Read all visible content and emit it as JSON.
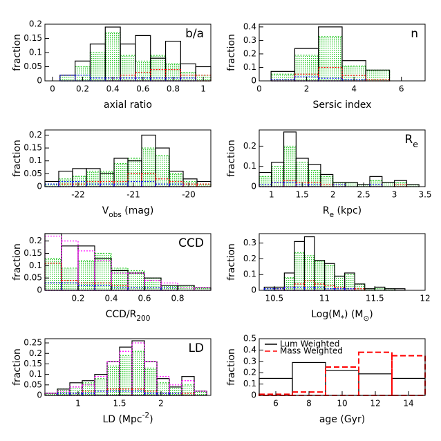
{
  "chart_data": [
    {
      "type": "histogram",
      "ylabel": "fraction",
      "xlabel": [
        {
          "text": "axial ratio"
        }
      ],
      "annotation": [
        {
          "text": "b/a"
        }
      ],
      "xlim": [
        -0.05,
        1.05
      ],
      "xticks": [
        0,
        0.2,
        0.4,
        0.6,
        0.8,
        1
      ],
      "ylim": [
        0,
        0.2
      ],
      "yticks": [
        0,
        0.05,
        0.1,
        0.15,
        0.2
      ],
      "bins": [
        0.05,
        0.15,
        0.25,
        0.35,
        0.45,
        0.55,
        0.65,
        0.75,
        0.85,
        0.95,
        1.05
      ],
      "series": [
        {
          "color": "#33cc33",
          "style": "fill",
          "values": [
            0.02,
            0.05,
            0.1,
            0.17,
            0.09,
            0.07,
            0.09,
            0.06,
            0.03,
            0.02
          ]
        },
        {
          "color": "#000000",
          "style": "solid",
          "values": [
            0.02,
            0.07,
            0.13,
            0.19,
            0.13,
            0.16,
            0.08,
            0.14,
            0.06,
            0.05
          ]
        },
        {
          "color": "#ff0000",
          "style": "dotted",
          "values": [
            0,
            0,
            0,
            0.01,
            0.02,
            0.03,
            0.04,
            0.04,
            0.02,
            0.02
          ]
        },
        {
          "color": "#0000ff",
          "style": "dotted",
          "values": [
            0.02,
            0.02,
            0.01,
            0.01,
            0.01,
            0.01,
            0.01,
            0.01,
            0.01,
            0
          ]
        }
      ]
    },
    {
      "type": "histogram",
      "ylabel": "fraction",
      "xlabel": [
        {
          "text": "Sersic index"
        }
      ],
      "annotation": [
        {
          "text": "n"
        }
      ],
      "xlim": [
        0,
        7
      ],
      "xticks": [
        0,
        2,
        4,
        6
      ],
      "ylim": [
        0,
        0.42
      ],
      "yticks": [
        0,
        0.1,
        0.2,
        0.3,
        0.4
      ],
      "bins": [
        0.5,
        1.5,
        2.5,
        3.5,
        4.5,
        5.5
      ],
      "series": [
        {
          "color": "#33cc33",
          "style": "fill",
          "values": [
            0.05,
            0.19,
            0.33,
            0.11,
            0.08
          ]
        },
        {
          "color": "#000000",
          "style": "solid",
          "values": [
            0.07,
            0.24,
            0.4,
            0.15,
            0.08
          ]
        },
        {
          "color": "#ff0000",
          "style": "dotted",
          "values": [
            0.01,
            0.05,
            0.1,
            0.04,
            0.01
          ]
        },
        {
          "color": "#0000ff",
          "style": "dotted",
          "values": [
            0.01,
            0.03,
            0.02,
            0.01,
            0
          ]
        }
      ]
    },
    {
      "type": "histogram",
      "ylabel": "fraction",
      "xlabel": [
        {
          "text": "V"
        },
        {
          "text": "obs",
          "sub": true
        },
        {
          "text": " (mag)"
        }
      ],
      "annotation": [],
      "xlim": [
        -22.6,
        -19.6
      ],
      "xticks": [
        -22,
        -21,
        -20
      ],
      "ylim": [
        0,
        0.22
      ],
      "yticks": [
        0,
        0.05,
        0.1,
        0.15,
        0.2
      ],
      "bins": [
        -22.6,
        -22.35,
        -22.1,
        -21.85,
        -21.6,
        -21.35,
        -21.1,
        -20.85,
        -20.6,
        -20.35,
        -20.1,
        -19.85,
        -19.6
      ],
      "series": [
        {
          "color": "#33cc33",
          "style": "fill",
          "values": [
            0.01,
            0.03,
            0.04,
            0.06,
            0.06,
            0.09,
            0.11,
            0.15,
            0.12,
            0.05,
            0.02,
            0.01
          ]
        },
        {
          "color": "#000000",
          "style": "solid",
          "values": [
            0.02,
            0.06,
            0.07,
            0.07,
            0.05,
            0.11,
            0.1,
            0.2,
            0.15,
            0.06,
            0.03,
            0.02
          ]
        },
        {
          "color": "#ff0000",
          "style": "dotted",
          "values": [
            0,
            0.01,
            0.01,
            0.02,
            0.02,
            0.02,
            0.05,
            0.05,
            0.03,
            0.02,
            0.01,
            0.01
          ]
        },
        {
          "color": "#0000ff",
          "style": "dotted",
          "values": [
            0.01,
            0.02,
            0.02,
            0.01,
            0.01,
            0.01,
            0.02,
            0.02,
            0.01,
            0.01,
            0,
            0
          ]
        }
      ]
    },
    {
      "type": "histogram",
      "ylabel": "fraction",
      "xlabel": [
        {
          "text": "R"
        },
        {
          "text": "e",
          "sub": true
        },
        {
          "text": " (kpc)"
        }
      ],
      "annotation": [
        {
          "text": "R"
        },
        {
          "text": "e",
          "sub": true
        }
      ],
      "xlim": [
        0.8,
        3.5
      ],
      "xticks": [
        1,
        1.5,
        2,
        2.5,
        3,
        3.5
      ],
      "ylim": [
        0,
        0.28
      ],
      "yticks": [
        0,
        0.1,
        0.2
      ],
      "bins": [
        0.8,
        1.0,
        1.2,
        1.4,
        1.6,
        1.8,
        2.0,
        2.2,
        2.4,
        2.6,
        2.8,
        3.0,
        3.2,
        3.4
      ],
      "series": [
        {
          "color": "#33cc33",
          "style": "fill",
          "values": [
            0.05,
            0.1,
            0.2,
            0.12,
            0.08,
            0.05,
            0.02,
            0.02,
            0.01,
            0.03,
            0.02,
            0.02,
            0.01
          ]
        },
        {
          "color": "#000000",
          "style": "solid",
          "values": [
            0.07,
            0.12,
            0.27,
            0.14,
            0.11,
            0.06,
            0.02,
            0.02,
            0.01,
            0.05,
            0.02,
            0.03,
            0.01
          ]
        },
        {
          "color": "#ff0000",
          "style": "dotted",
          "values": [
            0.01,
            0.02,
            0.03,
            0.02,
            0.02,
            0.01,
            0.01,
            0,
            0,
            0.01,
            0,
            0.01,
            0
          ]
        },
        {
          "color": "#0000ff",
          "style": "dotted",
          "values": [
            0.01,
            0.02,
            0.02,
            0.01,
            0.01,
            0,
            0.01,
            0,
            0,
            0.01,
            0,
            0,
            0
          ]
        }
      ]
    },
    {
      "type": "histogram",
      "ylabel": "fraction",
      "xlabel": [
        {
          "text": "CCD/R"
        },
        {
          "text": "200",
          "sub": true
        }
      ],
      "annotation": [
        {
          "text": "CCD"
        }
      ],
      "xlim": [
        0,
        1
      ],
      "xticks": [
        0.2,
        0.4,
        0.6,
        0.8
      ],
      "ylim": [
        0,
        0.23
      ],
      "yticks": [
        0,
        0.05,
        0.1,
        0.15,
        0.2
      ],
      "bins": [
        0,
        0.1,
        0.2,
        0.3,
        0.4,
        0.5,
        0.6,
        0.7,
        0.8,
        0.9,
        1.0
      ],
      "series": [
        {
          "color": "#33cc33",
          "style": "fill",
          "values": [
            0.13,
            0.09,
            0.12,
            0.15,
            0.09,
            0.08,
            0.05,
            0.02,
            0.02,
            0.01
          ]
        },
        {
          "color": "#000000",
          "style": "solid",
          "values": [
            0.23,
            0.18,
            0.18,
            0.13,
            0.08,
            0.07,
            0.05,
            0.02,
            0.02,
            0.01
          ]
        },
        {
          "color": "#ff00ff",
          "style": "dotted",
          "values": [
            0.22,
            0.2,
            0.16,
            0.12,
            0.07,
            0.07,
            0.04,
            0.03,
            0.01,
            0.01
          ]
        },
        {
          "color": "#ff0000",
          "style": "dotted",
          "values": [
            0.11,
            0.04,
            0.03,
            0.03,
            0.02,
            0.01,
            0.01,
            0.01,
            0,
            0
          ]
        },
        {
          "color": "#0000ff",
          "style": "dotted",
          "values": [
            0.03,
            0.03,
            0.02,
            0.02,
            0.01,
            0.01,
            0.01,
            0.01,
            0,
            0
          ]
        }
      ]
    },
    {
      "type": "histogram",
      "ylabel": "fraction",
      "xlabel": [
        {
          "text": "Log(M"
        },
        {
          "text": "*",
          "sub": true
        },
        {
          "text": ") (M"
        },
        {
          "text": "⊙",
          "sub": true
        },
        {
          "text": ")"
        }
      ],
      "annotation": [],
      "xlim": [
        10.35,
        12
      ],
      "xticks": [
        10.5,
        11,
        11.5,
        12
      ],
      "ylim": [
        0,
        0.36
      ],
      "yticks": [
        0,
        0.1,
        0.2,
        0.3
      ],
      "bins": [
        10.4,
        10.5,
        10.6,
        10.7,
        10.8,
        10.9,
        11.0,
        11.1,
        11.2,
        11.3,
        11.4,
        11.5,
        11.6,
        11.7,
        11.8
      ],
      "series": [
        {
          "color": "#33cc33",
          "style": "fill",
          "values": [
            0.01,
            0.02,
            0.08,
            0.24,
            0.22,
            0.19,
            0.16,
            0.09,
            0.1,
            0.04,
            0.01,
            0.02,
            0.01,
            0
          ]
        },
        {
          "color": "#000000",
          "style": "solid",
          "values": [
            0.02,
            0.02,
            0.11,
            0.31,
            0.34,
            0.19,
            0.17,
            0.09,
            0.11,
            0.04,
            0.01,
            0.02,
            0.01,
            0.01
          ]
        },
        {
          "color": "#ff0000",
          "style": "dotted",
          "values": [
            0,
            0.01,
            0.02,
            0.04,
            0.06,
            0.04,
            0.03,
            0.02,
            0.01,
            0.01,
            0,
            0,
            0,
            0
          ]
        },
        {
          "color": "#0000ff",
          "style": "dotted",
          "values": [
            0.01,
            0.01,
            0.02,
            0.02,
            0.02,
            0.02,
            0.01,
            0.01,
            0.01,
            0,
            0,
            0,
            0,
            0
          ]
        }
      ]
    },
    {
      "type": "histogram",
      "ylabel": "fraction",
      "xlabel": [
        {
          "text": "LD (Mpc"
        },
        {
          "text": "-2",
          "sup": true
        },
        {
          "text": ")"
        }
      ],
      "annotation": [
        {
          "text": "LD"
        }
      ],
      "xlim": [
        0.6,
        2.6
      ],
      "xticks": [
        1,
        1.5,
        2
      ],
      "ylim": [
        0,
        0.27
      ],
      "yticks": [
        0,
        0.05,
        0.1,
        0.15,
        0.2,
        0.25
      ],
      "bins": [
        0.6,
        0.75,
        0.9,
        1.05,
        1.2,
        1.35,
        1.5,
        1.65,
        1.8,
        1.95,
        2.1,
        2.25,
        2.4,
        2.55
      ],
      "series": [
        {
          "color": "#33cc33",
          "style": "fill",
          "values": [
            0.01,
            0.03,
            0.04,
            0.06,
            0.08,
            0.14,
            0.19,
            0.21,
            0.13,
            0.06,
            0.04,
            0.05,
            0.02
          ]
        },
        {
          "color": "#000000",
          "style": "solid",
          "values": [
            0.01,
            0.03,
            0.06,
            0.07,
            0.1,
            0.16,
            0.23,
            0.26,
            0.16,
            0.08,
            0.04,
            0.09,
            0.02
          ]
        },
        {
          "color": "#ff00ff",
          "style": "dotted",
          "values": [
            0.01,
            0.02,
            0.04,
            0.05,
            0.09,
            0.16,
            0.21,
            0.25,
            0.16,
            0.09,
            0.05,
            0.07,
            0.02
          ]
        },
        {
          "color": "#ff0000",
          "style": "dotted",
          "values": [
            0,
            0.01,
            0.01,
            0.02,
            0.02,
            0.03,
            0.03,
            0.03,
            0.02,
            0.01,
            0.01,
            0.01,
            0
          ]
        },
        {
          "color": "#0000ff",
          "style": "dotted",
          "values": [
            0,
            0.01,
            0.01,
            0.01,
            0.02,
            0.02,
            0.02,
            0.02,
            0.01,
            0.01,
            0.01,
            0,
            0
          ]
        }
      ]
    },
    {
      "type": "histogram",
      "ylabel": "fraction",
      "xlabel": [
        {
          "text": "age (Gyr)"
        }
      ],
      "annotation": [],
      "legend": "upper left",
      "xlim": [
        5,
        15
      ],
      "xticks": [
        6,
        8,
        10,
        12,
        14
      ],
      "ylim": [
        0,
        0.5
      ],
      "yticks": [
        0,
        0.1,
        0.2,
        0.3,
        0.4,
        0.5
      ],
      "bins": [
        5,
        7,
        9,
        11,
        13,
        15
      ],
      "series": [
        {
          "name": "Lum Weighted",
          "color": "#000000",
          "style": "solid",
          "values": [
            0.15,
            0.29,
            0.22,
            0.19,
            0.15
          ]
        },
        {
          "name": "Mass Weighted",
          "color": "#ff0000",
          "style": "dashed",
          "values": [
            0.01,
            0.03,
            0.25,
            0.38,
            0.35
          ]
        }
      ]
    }
  ]
}
